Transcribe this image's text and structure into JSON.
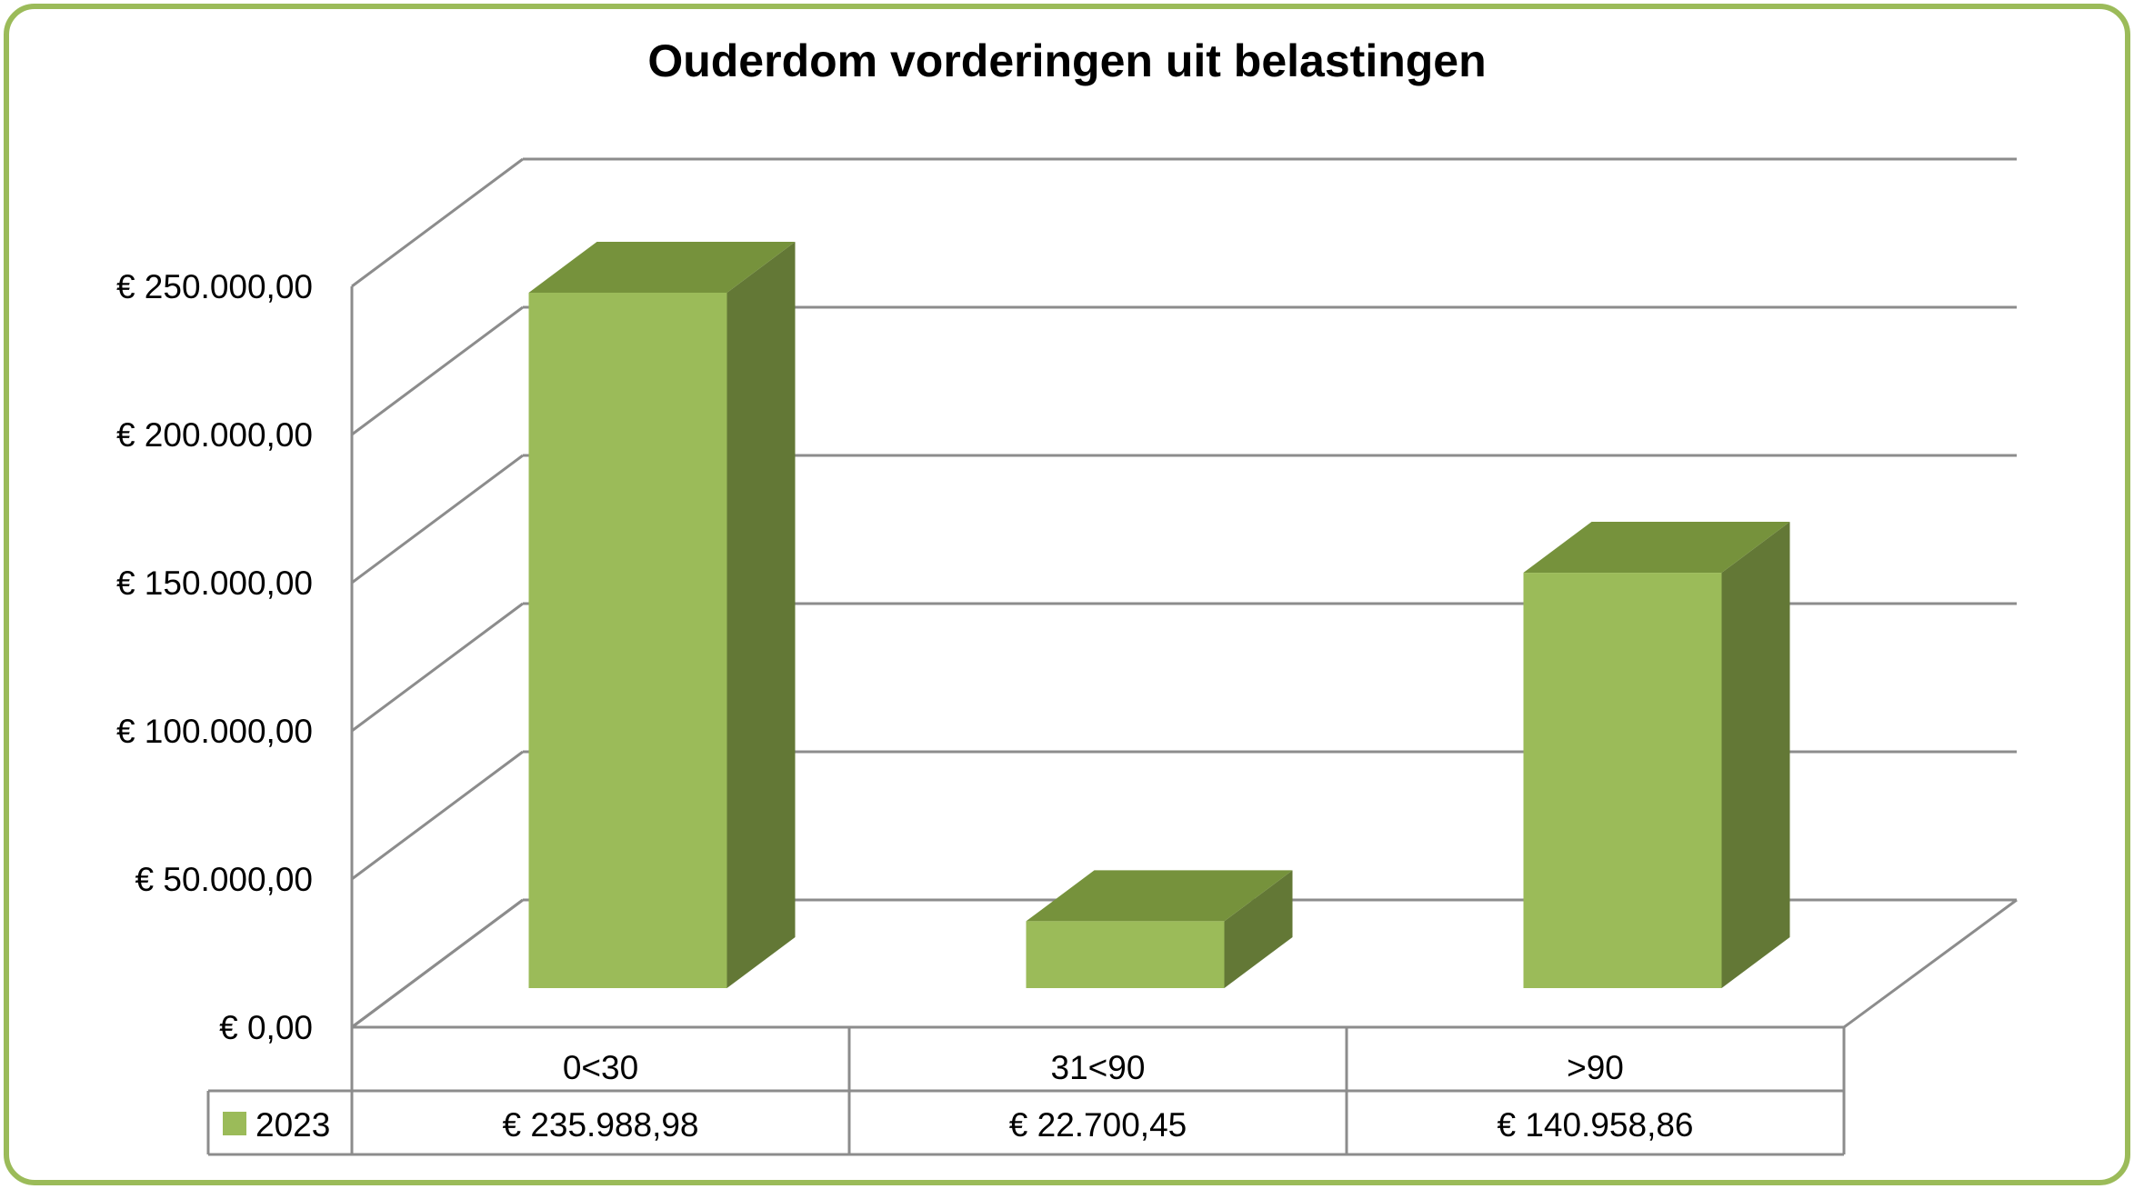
{
  "chart_data": {
    "type": "bar",
    "title": "Ouderdom vorderingen uit belastingen",
    "categories": [
      "0<30",
      "31<90",
      ">90"
    ],
    "series": [
      {
        "name": "2023",
        "values": [
          235988.98,
          22700.45,
          140958.86
        ],
        "value_labels": [
          "€ 235.988,98",
          "€ 22.700,45",
          "€ 140.958,86"
        ],
        "color": "#9bbb59",
        "top_color": "#76923c",
        "side_color": "#637836"
      }
    ],
    "yticks": [
      0,
      50000,
      100000,
      150000,
      200000,
      250000
    ],
    "ytick_labels": [
      "€ 0,00",
      "€ 50.000,00",
      "€ 100.000,00",
      "€ 150.000,00",
      "€ 200.000,00",
      "€ 250.000,00"
    ],
    "ylim": [
      0,
      250000
    ],
    "grid": true,
    "legend": "data-table",
    "border_color": "#9bbb59"
  }
}
